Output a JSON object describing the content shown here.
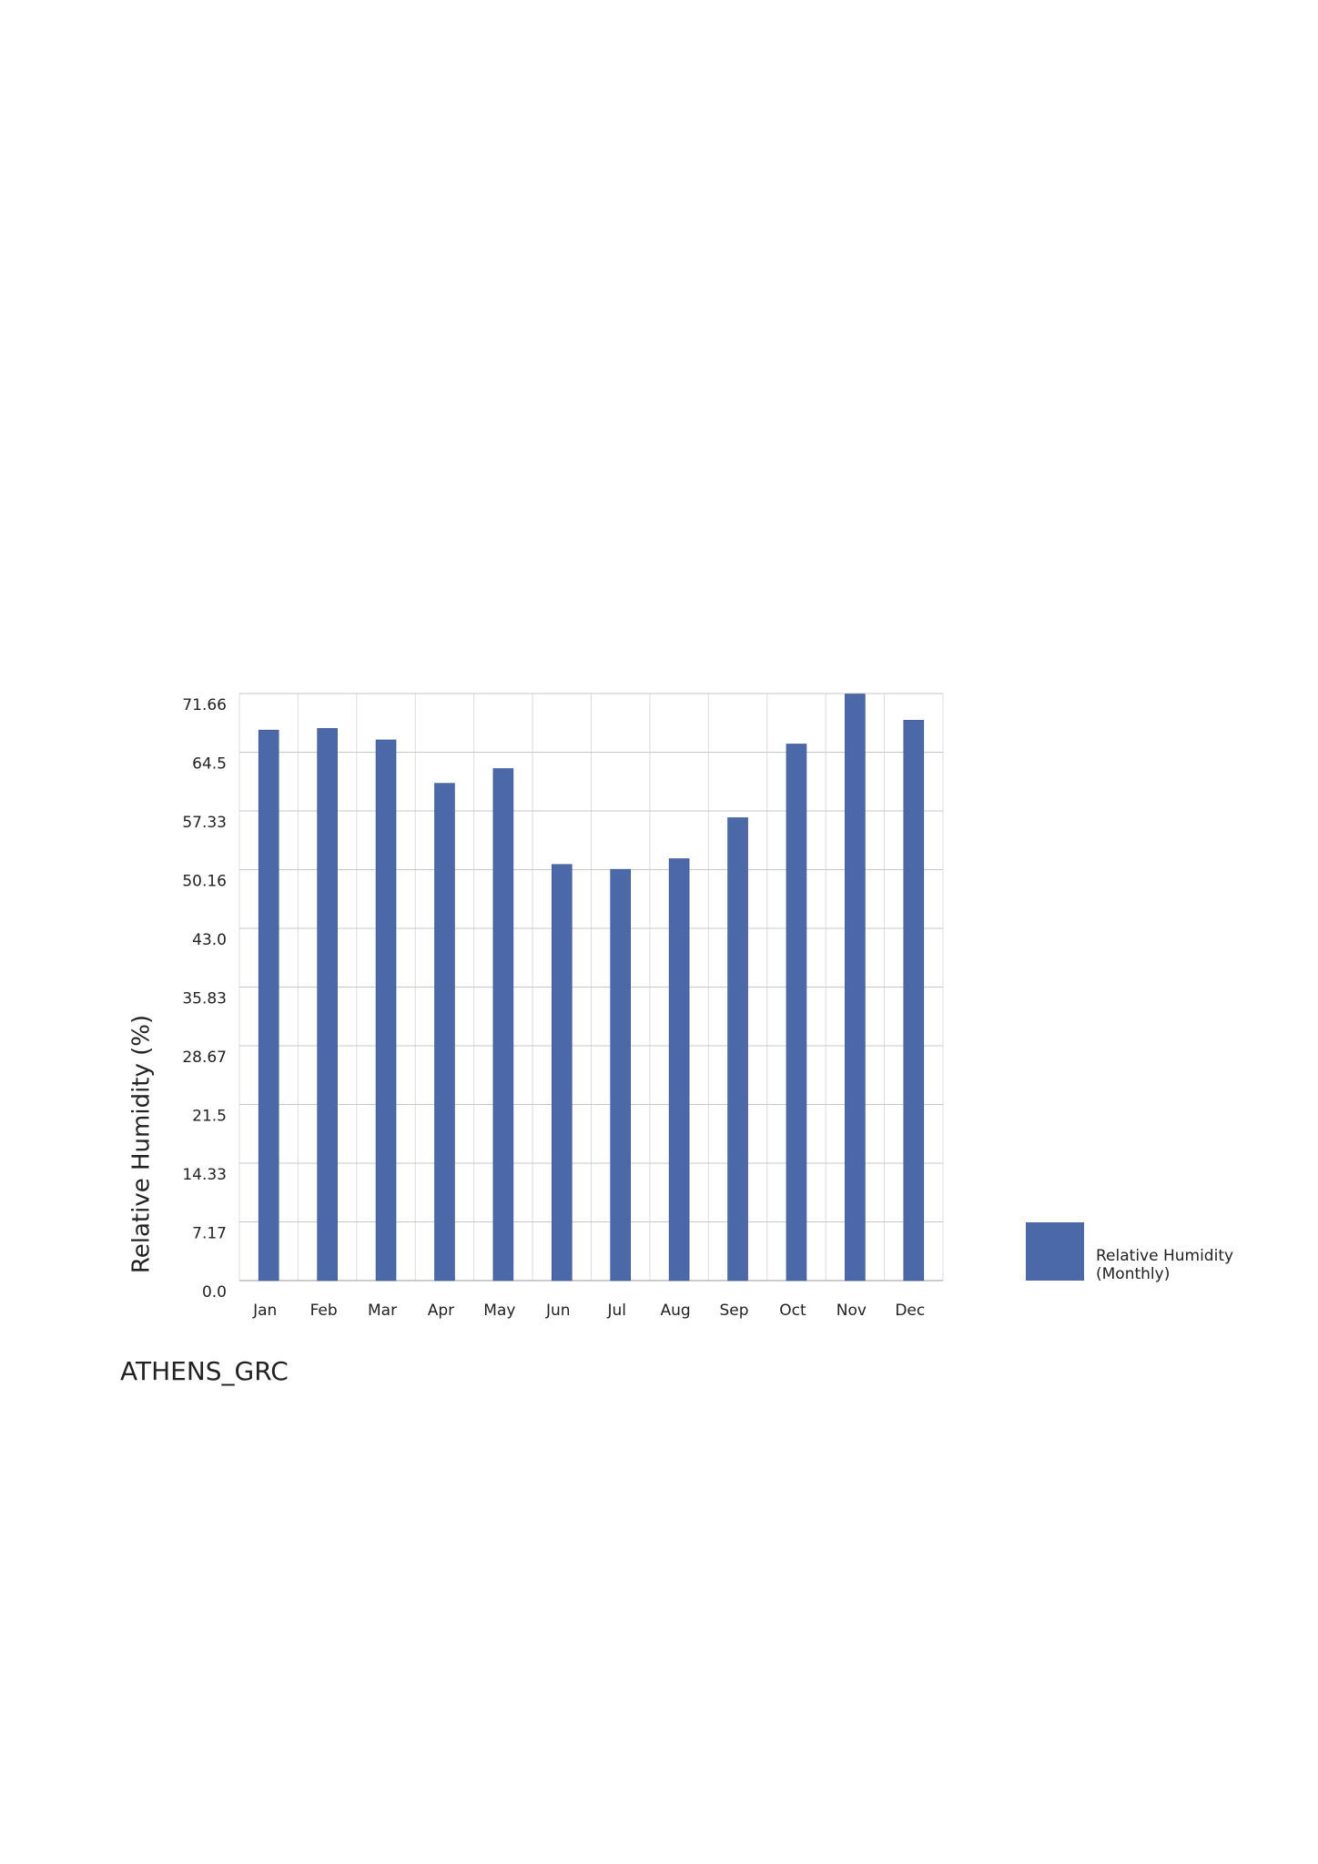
{
  "chart_data": {
    "type": "bar",
    "title": "ATHENS_GRC",
    "y_label": "Relative Humidity (%)",
    "categories": [
      "Jan",
      "Feb",
      "Mar",
      "Apr",
      "May",
      "Jun",
      "Jul",
      "Aug",
      "Sep",
      "Oct",
      "Nov",
      "Dec"
    ],
    "series": [
      {
        "name": "Relative Humidity (Monthly)",
        "color": "#4b68a8",
        "values": [
          67.2,
          67.4,
          66.0,
          60.7,
          62.5,
          50.8,
          50.2,
          51.5,
          56.5,
          65.5,
          71.6,
          68.4
        ]
      }
    ],
    "ylim": [
      0,
      71.66
    ],
    "yticks": [
      {
        "value": 0,
        "label": "0.0"
      },
      7.17,
      14.33,
      21.5,
      28.67,
      35.83,
      {
        "value": 43,
        "label": "43.0"
      },
      50.16,
      57.33,
      64.5,
      71.66
    ],
    "grid": true,
    "legend": "right"
  }
}
